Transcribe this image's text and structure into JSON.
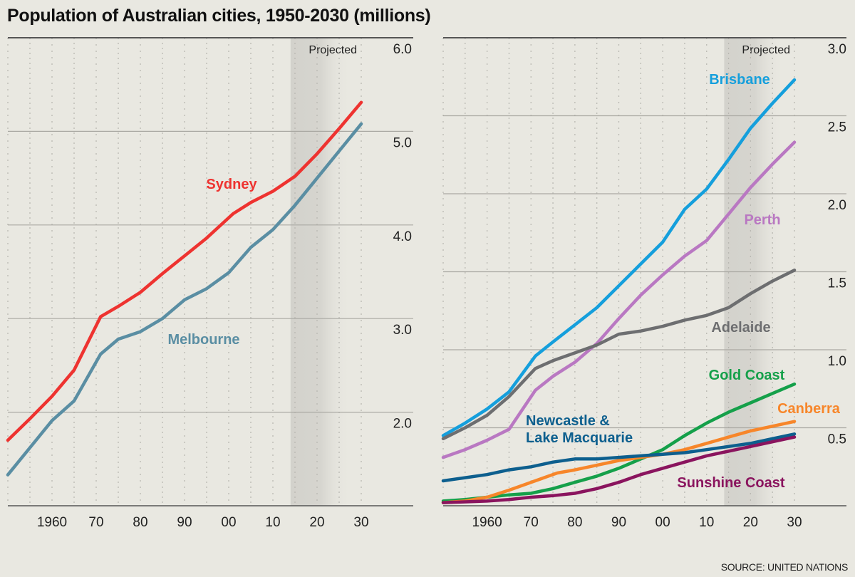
{
  "title": "Population of Australian cities, 1950-2030 (millions)",
  "source": "SOURCE: UNITED NATIONS",
  "chart_data": [
    {
      "type": "line",
      "projected_label": "Projected",
      "projected_from": 2014,
      "xlim": [
        1950,
        2030
      ],
      "ylim": [
        1.0,
        6.0
      ],
      "x_ticks": [
        1960,
        1970,
        1980,
        1990,
        2000,
        2010,
        2020,
        2030
      ],
      "x_tick_labels": [
        "1960",
        "70",
        "80",
        "90",
        "00",
        "10",
        "20",
        "30"
      ],
      "y_ticks": [
        2.0,
        3.0,
        4.0,
        5.0,
        6.0
      ],
      "y_tick_labels": [
        "2.0",
        "3.0",
        "4.0",
        "5.0",
        "6.0"
      ],
      "grid": true,
      "series": [
        {
          "name": "Sydney",
          "color": "#ee3330",
          "x": [
            1950,
            1955,
            1960,
            1965,
            1971,
            1975,
            1980,
            1985,
            1990,
            1995,
            2001,
            2005,
            2010,
            2015,
            2020,
            2025,
            2030
          ],
          "y": [
            1.7,
            1.93,
            2.17,
            2.45,
            3.02,
            3.13,
            3.28,
            3.48,
            3.67,
            3.86,
            4.12,
            4.24,
            4.36,
            4.52,
            4.76,
            5.03,
            5.31
          ]
        },
        {
          "name": "Melbourne",
          "color": "#5a8ea3",
          "x": [
            1950,
            1955,
            1960,
            1965,
            1971,
            1975,
            1980,
            1985,
            1990,
            1995,
            2000,
            2005,
            2010,
            2015,
            2020,
            2025,
            2030
          ],
          "y": [
            1.33,
            1.62,
            1.91,
            2.12,
            2.62,
            2.78,
            2.86,
            3.0,
            3.2,
            3.32,
            3.49,
            3.76,
            3.95,
            4.21,
            4.5,
            4.79,
            5.08
          ]
        }
      ]
    },
    {
      "type": "line",
      "projected_label": "Projected",
      "projected_from": 2014,
      "xlim": [
        1950,
        2030
      ],
      "ylim": [
        0,
        3.0
      ],
      "x_ticks": [
        1960,
        1970,
        1980,
        1990,
        2000,
        2010,
        2020,
        2030
      ],
      "x_tick_labels": [
        "1960",
        "70",
        "80",
        "90",
        "00",
        "10",
        "20",
        "30"
      ],
      "y_ticks": [
        0.5,
        1.0,
        1.5,
        2.0,
        2.5,
        3.0
      ],
      "y_tick_labels": [
        "0.5",
        "1.0",
        "1.5",
        "2.0",
        "2.5",
        "3.0"
      ],
      "grid": true,
      "series": [
        {
          "name": "Brisbane",
          "color": "#159fdc",
          "x": [
            1950,
            1955,
            1960,
            1965,
            1971,
            1975,
            1980,
            1985,
            1990,
            1995,
            2000,
            2005,
            2010,
            2015,
            2020,
            2025,
            2030
          ],
          "y": [
            0.45,
            0.53,
            0.62,
            0.73,
            0.96,
            1.05,
            1.16,
            1.27,
            1.41,
            1.55,
            1.69,
            1.9,
            2.03,
            2.22,
            2.42,
            2.58,
            2.73
          ]
        },
        {
          "name": "Perth",
          "color": "#b978c2",
          "x": [
            1950,
            1955,
            1960,
            1965,
            1971,
            1975,
            1980,
            1985,
            1990,
            1995,
            2000,
            2005,
            2010,
            2015,
            2020,
            2025,
            2030
          ],
          "y": [
            0.31,
            0.36,
            0.42,
            0.49,
            0.74,
            0.83,
            0.92,
            1.04,
            1.2,
            1.35,
            1.48,
            1.6,
            1.7,
            1.87,
            2.04,
            2.19,
            2.33
          ]
        },
        {
          "name": "Adelaide",
          "color": "#6d6e70",
          "x": [
            1950,
            1955,
            1960,
            1965,
            1971,
            1975,
            1980,
            1985,
            1990,
            1995,
            2000,
            2005,
            2010,
            2015,
            2020,
            2025,
            2030
          ],
          "y": [
            0.43,
            0.5,
            0.58,
            0.7,
            0.88,
            0.93,
            0.98,
            1.03,
            1.1,
            1.12,
            1.15,
            1.19,
            1.22,
            1.27,
            1.36,
            1.44,
            1.51
          ]
        },
        {
          "name": "Gold Coast",
          "color": "#15a04a",
          "x": [
            1950,
            1955,
            1960,
            1965,
            1970,
            1975,
            1980,
            1985,
            1990,
            1995,
            2000,
            2005,
            2010,
            2015,
            2020,
            2025,
            2030
          ],
          "y": [
            0.03,
            0.04,
            0.055,
            0.07,
            0.08,
            0.11,
            0.15,
            0.19,
            0.24,
            0.3,
            0.36,
            0.45,
            0.53,
            0.6,
            0.66,
            0.72,
            0.78
          ]
        },
        {
          "name": "Canberra",
          "color": "#f7862a",
          "x": [
            1950,
            1955,
            1960,
            1965,
            1970,
            1976,
            1980,
            1985,
            1990,
            1995,
            2000,
            2005,
            2010,
            2015,
            2020,
            2025,
            2030
          ],
          "y": [
            0.02,
            0.03,
            0.055,
            0.1,
            0.15,
            0.21,
            0.23,
            0.26,
            0.29,
            0.31,
            0.33,
            0.36,
            0.4,
            0.44,
            0.48,
            0.51,
            0.54
          ]
        },
        {
          "name": "Newcastle & Lake Macquarie",
          "label_lines": [
            "Newcastle &",
            "Lake Macquarie"
          ],
          "color": "#0d5f8e",
          "x": [
            1950,
            1955,
            1960,
            1965,
            1970,
            1975,
            1980,
            1985,
            1990,
            1995,
            2000,
            2005,
            2010,
            2015,
            2020,
            2025,
            2030
          ],
          "y": [
            0.16,
            0.18,
            0.2,
            0.23,
            0.25,
            0.28,
            0.3,
            0.3,
            0.31,
            0.32,
            0.33,
            0.34,
            0.36,
            0.38,
            0.4,
            0.43,
            0.46
          ]
        },
        {
          "name": "Sunshine Coast",
          "color": "#8a145e",
          "x": [
            1950,
            1955,
            1960,
            1965,
            1970,
            1975,
            1980,
            1985,
            1990,
            1995,
            2000,
            2005,
            2010,
            2015,
            2020,
            2025,
            2030
          ],
          "y": [
            0.02,
            0.025,
            0.03,
            0.04,
            0.055,
            0.065,
            0.08,
            0.11,
            0.15,
            0.2,
            0.24,
            0.28,
            0.32,
            0.35,
            0.38,
            0.41,
            0.44
          ]
        }
      ]
    }
  ]
}
